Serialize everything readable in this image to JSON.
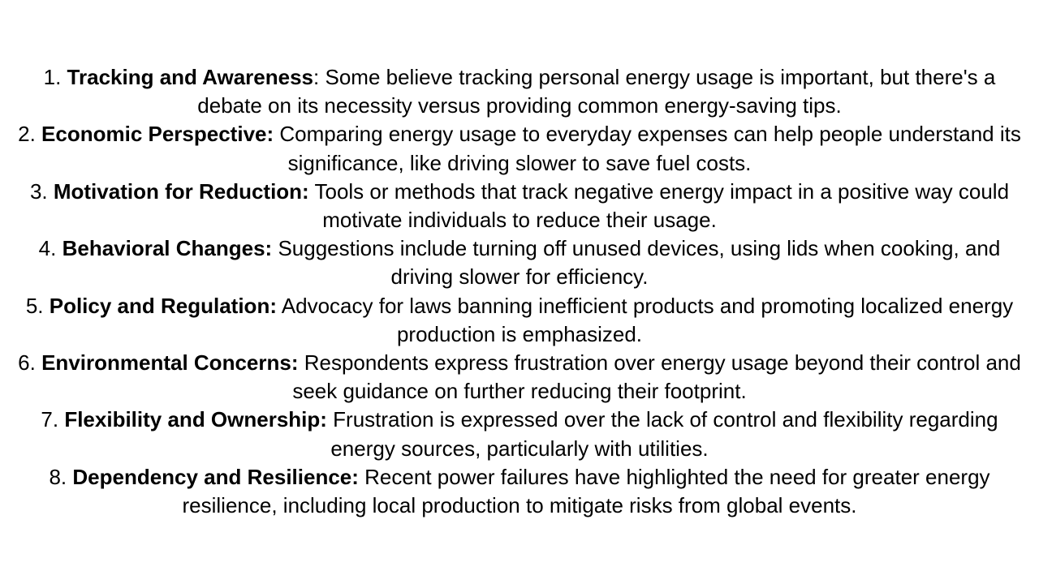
{
  "items": [
    {
      "num": "1.",
      "label": "Tracking and Awareness",
      "sep": ":",
      "text": "Some believe tracking personal energy usage is important, but there's a debate on its necessity versus providing common energy-saving tips."
    },
    {
      "num": "2.",
      "label": "Economic Perspective:",
      "sep": "",
      "text": "Comparing energy usage to everyday expenses can help people understand its significance, like driving slower to save fuel costs."
    },
    {
      "num": "3.",
      "label": "Motivation for Reduction:",
      "sep": "",
      "text": "Tools or methods that track negative energy impact in a positive way could motivate individuals to reduce their usage."
    },
    {
      "num": "4.",
      "label": "Behavioral Changes:",
      "sep": "",
      "text": "Suggestions include turning off unused devices, using lids when cooking, and driving slower for efficiency."
    },
    {
      "num": "5.",
      "label": "Policy and Regulation:",
      "sep": "",
      "text": "Advocacy for laws banning inefficient products and promoting localized energy production is emphasized."
    },
    {
      "num": "6.",
      "label": "Environmental Concerns:",
      "sep": "",
      "text": "Respondents express frustration over energy usage beyond their control and seek guidance on further reducing their footprint."
    },
    {
      "num": "7.",
      "label": "Flexibility and Ownership:",
      "sep": "",
      "text": "Frustration is expressed over the lack of control and flexibility regarding energy sources, particularly with utilities."
    },
    {
      "num": "8.",
      "label": "Dependency and Resilience:",
      "sep": "",
      "text": "Recent power failures have highlighted the need for greater energy resilience, including local production to mitigate risks from global events."
    }
  ]
}
